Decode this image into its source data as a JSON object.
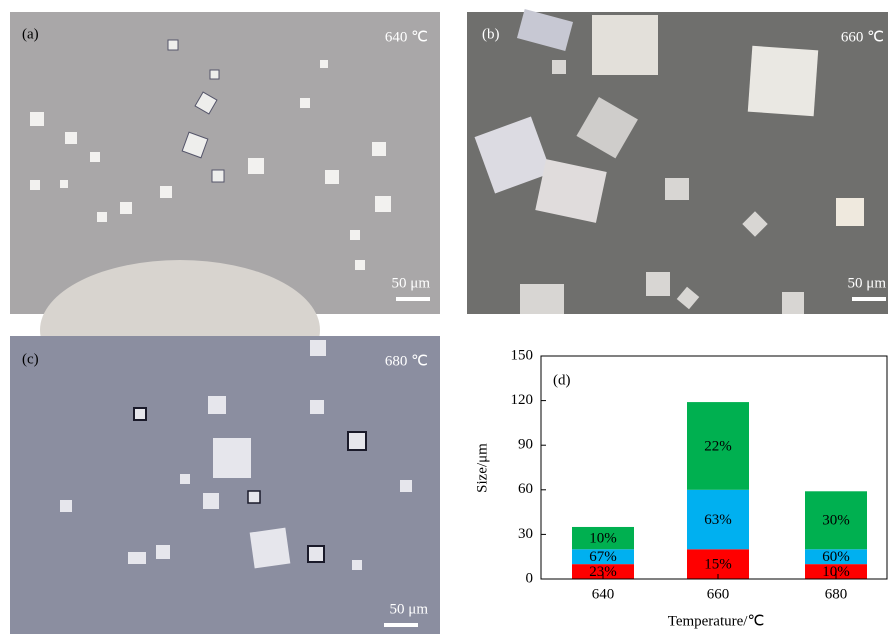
{
  "images": [
    {
      "label": "(a)",
      "temperature": "640 ℃",
      "scale": "50 μm"
    },
    {
      "label": "(b)",
      "temperature": "660 ℃",
      "scale": "50 μm"
    },
    {
      "label": "(c)",
      "temperature": "680 ℃",
      "scale": "50 μm"
    }
  ],
  "chart_data": {
    "type": "stacked-bar",
    "panel_label": "(d)",
    "x_label": "Temperature/℃",
    "y_label": "Size/μm",
    "categories": [
      "640",
      "660",
      "680"
    ],
    "series": [
      {
        "color": "#ff0000",
        "values": [
          10,
          20,
          10
        ],
        "labels": [
          "23%",
          "15%",
          "10%"
        ]
      },
      {
        "color": "#00b0f0",
        "values": [
          10,
          40,
          10
        ],
        "labels": [
          "67%",
          "63%",
          "60%"
        ]
      },
      {
        "color": "#00b050",
        "values": [
          15,
          59,
          39
        ],
        "labels": [
          "10%",
          "22%",
          "30%"
        ]
      }
    ],
    "ylim": [
      0,
      150
    ],
    "yticks": [
      0,
      30,
      60,
      90,
      120,
      150
    ]
  }
}
